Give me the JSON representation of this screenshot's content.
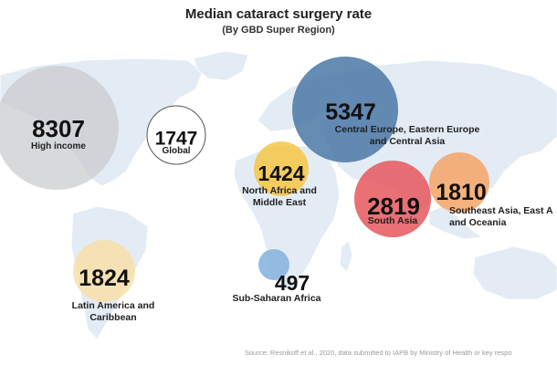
{
  "title": "Median cataract surgery rate",
  "subtitle": "(By GBD Super Region)",
  "source": "Source: Resnikoff et al., 2020, data submitted to IAPB by Ministry of Health or key respo",
  "map": {
    "land_color": "#e3ecf5",
    "background_color": "#ffffff"
  },
  "regions": [
    {
      "id": "high-income",
      "value": "8307",
      "label_lines": [
        "High income"
      ],
      "color": "#c9cccf",
      "opacity": 0.75,
      "border": "none"
    },
    {
      "id": "global",
      "value": "1747",
      "label_lines": [
        "Global"
      ],
      "color": "#ffffff",
      "opacity": 1.0,
      "border": "#555555"
    },
    {
      "id": "central-europe",
      "value": "5347",
      "label_lines": [
        "Central Europe, Eastern Europe",
        "and Central Asia"
      ],
      "color": "#4a78a6",
      "opacity": 0.85,
      "border": "none"
    },
    {
      "id": "north-africa",
      "value": "1424",
      "label_lines": [
        "North Africa and",
        "Middle East"
      ],
      "color": "#f6c43a",
      "opacity": 0.8,
      "border": "none"
    },
    {
      "id": "south-asia",
      "value": "2819",
      "label_lines": [
        "South Asia"
      ],
      "color": "#e5575c",
      "opacity": 0.85,
      "border": "none"
    },
    {
      "id": "southeast-asia",
      "value": "1810",
      "label_lines": [
        "Southeast Asia, East A",
        "and Oceania"
      ],
      "color": "#f6a565",
      "opacity": 0.85,
      "border": "none"
    },
    {
      "id": "latin-america",
      "value": "1824",
      "label_lines": [
        "Latin America and",
        "Caribbean"
      ],
      "color": "#f9dea4",
      "opacity": 0.8,
      "border": "none"
    },
    {
      "id": "sub-saharan",
      "value": "497",
      "label_lines": [
        "Sub-Saharan Africa"
      ],
      "color": "#8ab6e0",
      "opacity": 0.9,
      "border": "none"
    }
  ]
}
